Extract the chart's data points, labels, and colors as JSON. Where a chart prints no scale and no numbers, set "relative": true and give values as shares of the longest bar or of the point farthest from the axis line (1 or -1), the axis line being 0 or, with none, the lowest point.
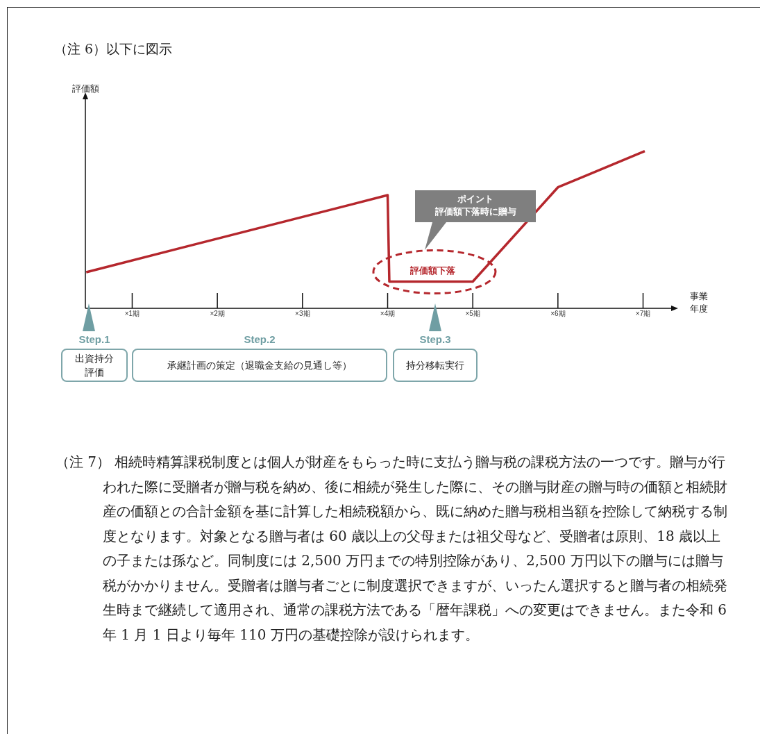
{
  "chart_data": {
    "type": "line",
    "title": "（注 6）以下に図示",
    "xlabel": "事業年度",
    "relative": true,
    "x": [
      0.46,
      4,
      4.02,
      5,
      6,
      7.02
    ],
    "series": [
      {
        "color": "#b5272d",
        "values": [
          0.23,
          0.72,
          0.17,
          0.17,
          0.77,
          1
        ]
      }
    ],
    "xlim": [
      0.45,
      7.33
    ],
    "xticks": [
      {
        "value": 1,
        "label": "×1期"
      },
      {
        "value": 2,
        "label": "×2期"
      },
      {
        "value": 3,
        "label": "×3期"
      },
      {
        "value": 4,
        "label": "×4期"
      },
      {
        "value": 5,
        "label": "×5期"
      },
      {
        "value": 6,
        "label": "×6期"
      },
      {
        "value": 7,
        "label": "×7期"
      }
    ],
    "grid": false,
    "legend": false,
    "marker": "none",
    "line_style": "solid",
    "annotations": [
      {
        "text": "評価額下落",
        "x": 4.55,
        "y": 0.17
      },
      "ポイント",
      "評価額下落時に贈与",
      "Step.1",
      "出資持分評価",
      "Step.2",
      "承継計画の策定（退職金支給の見通し等）",
      "Step.3",
      "持分移転実行",
      "評価額",
      "（注 7） 相続時精算課税制度とは個人が財産をもらった時に支払う贈与税の課税方法の一つです。贈与が行われた際に受贈者が贈与税を納め、後に相続が発生した際に、その贈与財産の贈与時の価額と相続財産の価額との合計金額を基に計算した相続税額から、既に納めた贈与税相当額を控除して納税する制度となります。対象となる贈与者は 60 歳以上の父母または祖父母など、受贈者は原則、18 歳以上の子または孫など。同制度には 2,500 万円までの特別控除があり、2,500 万円以下の贈与には贈与税がかかりません。受贈者は贈与者ごとに制度選択できますが、いったん選択すると贈与者の相続発生時まで継続して適用され、通常の課税方法である「暦年課税」への変更はできません。また令和 6 年 1 月 1 日より毎年 110 万円の基礎控除が設けられます。"
    ]
  }
}
